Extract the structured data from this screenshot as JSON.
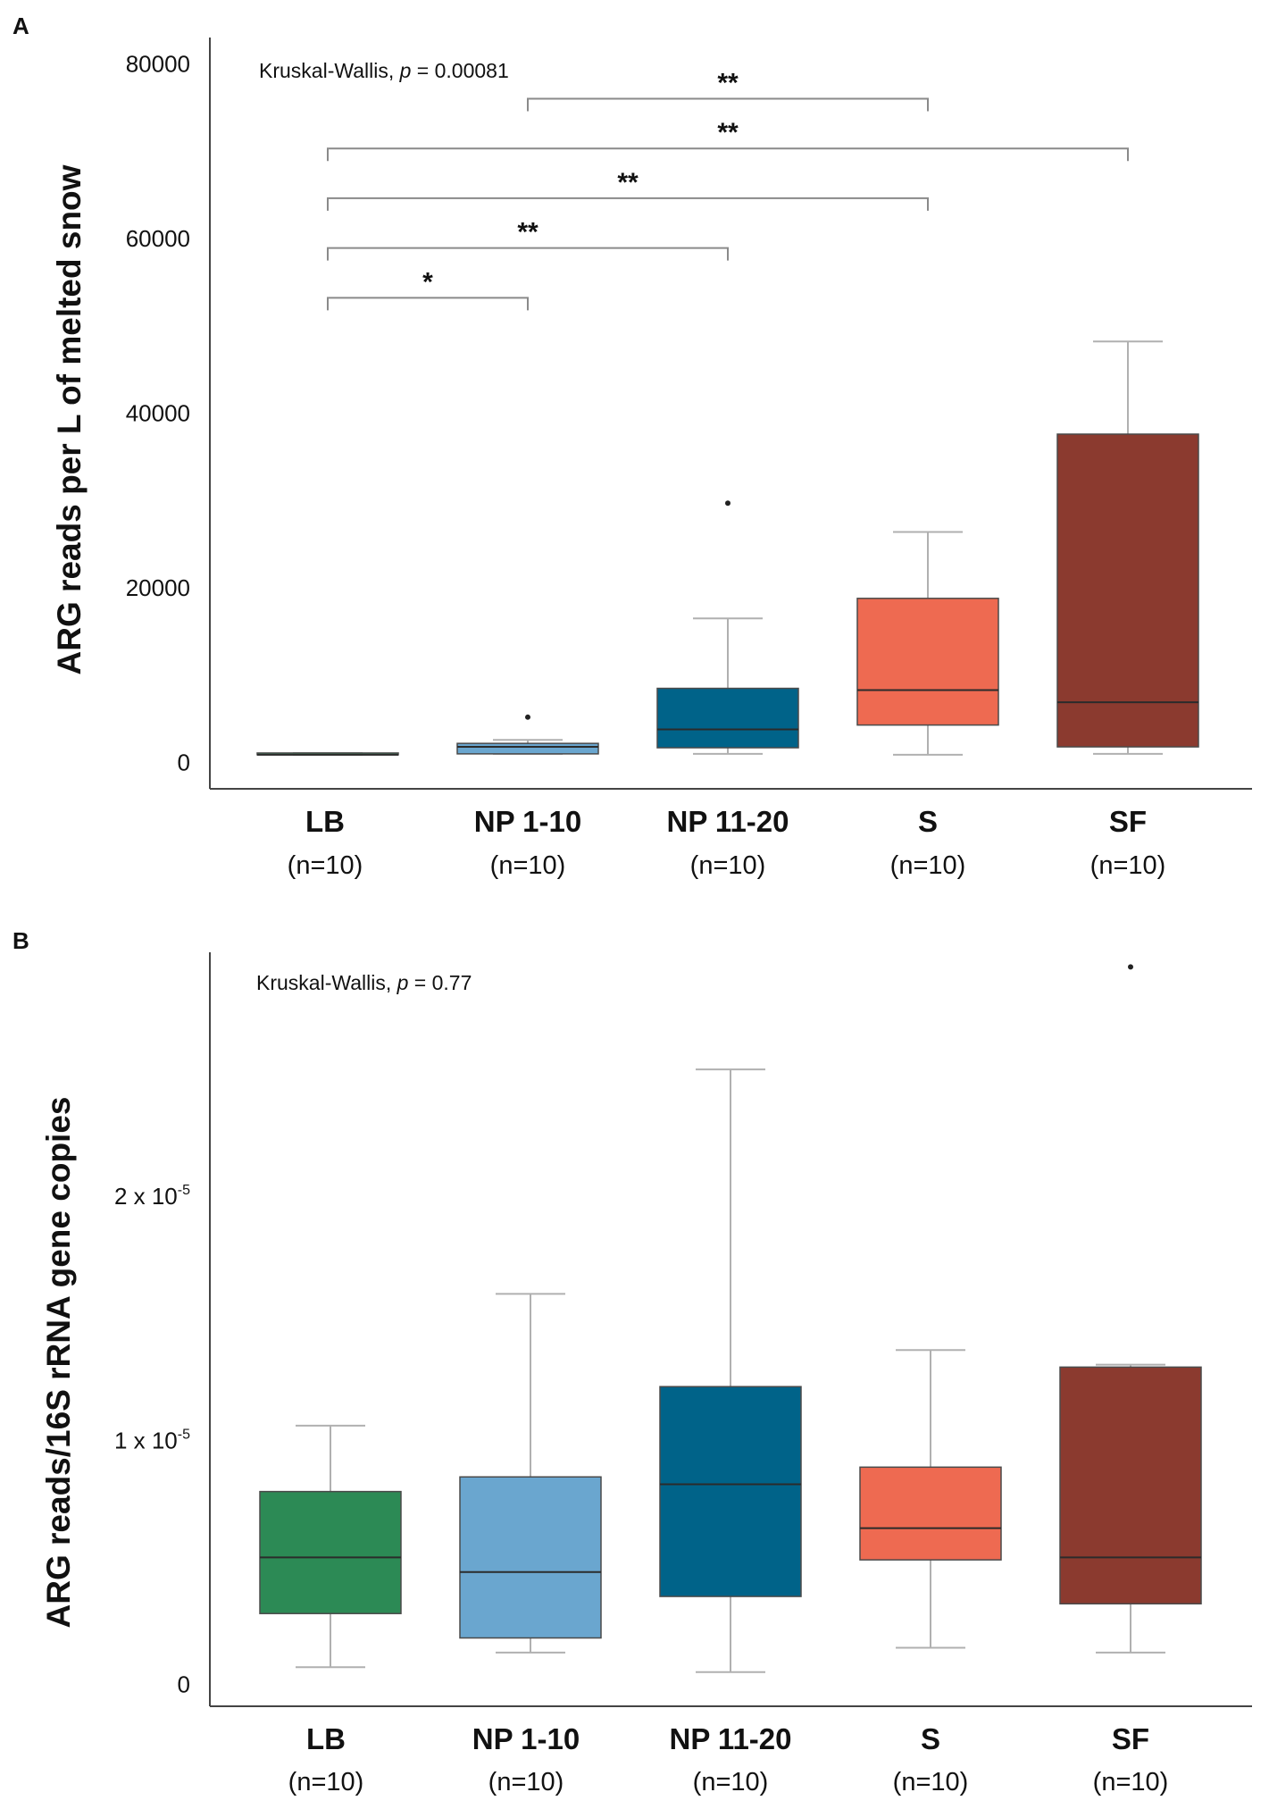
{
  "colors": {
    "LB": "#2c8a55",
    "NP 1-10": "#6aa6cf",
    "NP 11-20": "#006389",
    "S": "#ee6a51",
    "SF": "#8b3a2f",
    "axis": "#444444",
    "whisker": "#b0b0b0",
    "median": "#2b2b2b",
    "text": "#111111"
  },
  "chart_data": [
    {
      "type": "box",
      "panel_label": "A",
      "stat_text_prefix": "Kruskal-Wallis, ",
      "stat_text_p": "p",
      "stat_text_suffix": " = 0.00081",
      "ylabel": "ARG reads per L of melted snow",
      "xlabel": "",
      "ylim": [
        -3000,
        83000
      ],
      "yticks": [
        {
          "value": 0,
          "label": "0"
        },
        {
          "value": 20000,
          "label": "20000"
        },
        {
          "value": 40000,
          "label": "40000"
        },
        {
          "value": 60000,
          "label": "60000"
        },
        {
          "value": 80000,
          "label": "80000"
        }
      ],
      "categories": [
        "LB",
        "NP 1-10",
        "NP 11-20",
        "S",
        "SF"
      ],
      "n_labels": [
        "(n=10)",
        "(n=10)",
        "(n=10)",
        "(n=10)",
        "(n=10)"
      ],
      "boxes": [
        {
          "name": "LB",
          "whisker_low": 900,
          "q1": 900,
          "median": 900,
          "q3": 1100,
          "whisker_high": 1100,
          "outliers": []
        },
        {
          "name": "NP 1-10",
          "whisker_low": 1000,
          "q1": 1000,
          "median": 1800,
          "q3": 2200,
          "whisker_high": 2600,
          "outliers": [
            5200
          ]
        },
        {
          "name": "NP 11-20",
          "whisker_low": 1000,
          "q1": 1700,
          "median": 3800,
          "q3": 8500,
          "whisker_high": 16500,
          "outliers": [
            29700
          ]
        },
        {
          "name": "S",
          "whisker_low": 900,
          "q1": 4300,
          "median": 8300,
          "q3": 18800,
          "whisker_high": 26400,
          "outliers": []
        },
        {
          "name": "SF",
          "whisker_low": 1000,
          "q1": 1800,
          "median": 6900,
          "q3": 37600,
          "whisker_high": 48200,
          "outliers": []
        }
      ],
      "significance": [
        {
          "from": "NP 1-10",
          "to": "S",
          "level": 76000,
          "label": "**"
        },
        {
          "from": "LB",
          "to": "SF",
          "level": 70300,
          "label": "**"
        },
        {
          "from": "LB",
          "to": "S",
          "level": 64600,
          "label": "**"
        },
        {
          "from": "LB",
          "to": "NP 11-20",
          "level": 58900,
          "label": "**"
        },
        {
          "from": "LB",
          "to": "NP 1-10",
          "level": 53200,
          "label": "*"
        }
      ]
    },
    {
      "type": "box",
      "panel_label": "B",
      "stat_text_prefix": "Kruskal-Wallis, ",
      "stat_text_p": "p",
      "stat_text_suffix": " = 0.77",
      "ylabel": "ARG reads/16S rRNA gene copies",
      "xlabel": "",
      "ylim": [
        -9e-07,
        3e-05
      ],
      "yticks": [
        {
          "value": 0,
          "label_main": "0",
          "label_exp": ""
        },
        {
          "value": 1e-05,
          "label_main": "1 x 10",
          "label_exp": "-5"
        },
        {
          "value": 2e-05,
          "label_main": "2 x 10",
          "label_exp": "-5"
        }
      ],
      "categories": [
        "LB",
        "NP 1-10",
        "NP 11-20",
        "S",
        "SF"
      ],
      "n_labels": [
        "(n=10)",
        "(n=10)",
        "(n=10)",
        "(n=10)",
        "(n=10)"
      ],
      "boxes": [
        {
          "name": "LB",
          "whisker_low": 7e-07,
          "q1": 2.9e-06,
          "median": 5.2e-06,
          "q3": 7.9e-06,
          "whisker_high": 1.06e-05,
          "outliers": []
        },
        {
          "name": "NP 1-10",
          "whisker_low": 1.3e-06,
          "q1": 1.9e-06,
          "median": 4.6e-06,
          "q3": 8.5e-06,
          "whisker_high": 1.6e-05,
          "outliers": []
        },
        {
          "name": "NP 11-20",
          "whisker_low": 5e-07,
          "q1": 3.6e-06,
          "median": 8.2e-06,
          "q3": 1.22e-05,
          "whisker_high": 2.52e-05,
          "outliers": []
        },
        {
          "name": "S",
          "whisker_low": 1.5e-06,
          "q1": 5.1e-06,
          "median": 6.4e-06,
          "q3": 8.9e-06,
          "whisker_high": 1.37e-05,
          "outliers": []
        },
        {
          "name": "SF",
          "whisker_low": 1.3e-06,
          "q1": 3.3e-06,
          "median": 5.2e-06,
          "q3": 1.3e-05,
          "whisker_high": 1.31e-05,
          "outliers": [
            2.94e-05
          ]
        }
      ],
      "significance": []
    }
  ]
}
